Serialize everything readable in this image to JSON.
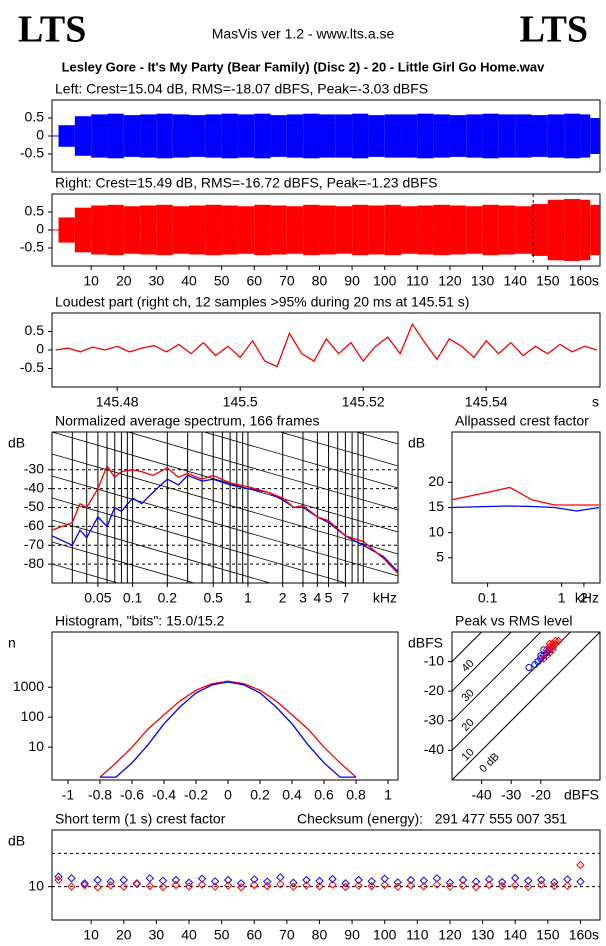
{
  "header": {
    "logo_left": "LTS",
    "title": "MasVis ver 1.2 - www.lts.a.se",
    "logo_right": "LTS",
    "filename": "Lesley Gore - It's My Party (Bear Family) (Disc 2) - 20 - Little Girl Go Home.wav"
  },
  "chart_data": [
    {
      "type": "waveform",
      "title": "Left: Crest=15.04 dB, RMS=-18.07 dBFS, Peak=-3.03 dBFS",
      "x": [
        0,
        5,
        10,
        15,
        20,
        25,
        30,
        35,
        40,
        45,
        50,
        55,
        60,
        65,
        70,
        75,
        80,
        85,
        90,
        95,
        100,
        105,
        110,
        115,
        120,
        125,
        130,
        135,
        140,
        145,
        150,
        155,
        160,
        163
      ],
      "values": [
        0.3,
        0.55,
        0.6,
        0.62,
        0.58,
        0.6,
        0.62,
        0.6,
        0.58,
        0.6,
        0.62,
        0.6,
        0.62,
        0.58,
        0.6,
        0.62,
        0.6,
        0.6,
        0.62,
        0.58,
        0.6,
        0.6,
        0.62,
        0.6,
        0.58,
        0.6,
        0.62,
        0.6,
        0.6,
        0.58,
        0.6,
        0.62,
        0.6,
        0.5
      ],
      "color": "#0000ff",
      "xlim": [
        -2,
        166
      ],
      "ylim": [
        -1,
        1
      ],
      "yticks": [
        0.5,
        0,
        -0.5
      ]
    },
    {
      "type": "waveform",
      "title": "Right: Crest=15.49 dB, RMS=-16.72 dBFS, Peak=-1.23 dBFS",
      "x": [
        0,
        5,
        10,
        15,
        20,
        25,
        30,
        35,
        40,
        45,
        50,
        55,
        60,
        65,
        70,
        75,
        80,
        85,
        90,
        95,
        100,
        105,
        110,
        115,
        120,
        125,
        130,
        135,
        140,
        145,
        150,
        155,
        160,
        163
      ],
      "values": [
        0.35,
        0.62,
        0.68,
        0.7,
        0.66,
        0.68,
        0.7,
        0.66,
        0.68,
        0.7,
        0.68,
        0.66,
        0.7,
        0.68,
        0.66,
        0.7,
        0.68,
        0.66,
        0.7,
        0.68,
        0.7,
        0.66,
        0.68,
        0.7,
        0.68,
        0.66,
        0.7,
        0.68,
        0.66,
        0.72,
        0.84,
        0.86,
        0.84,
        0.7
      ],
      "color": "#ff0000",
      "cursor": 145.51,
      "xlim": [
        -2,
        166
      ],
      "ylim": [
        -1,
        1
      ],
      "yticks": [
        0.5,
        0,
        -0.5
      ],
      "xticks": [
        10,
        20,
        30,
        40,
        50,
        60,
        70,
        80,
        90,
        100,
        110,
        120,
        130,
        140,
        150,
        160
      ],
      "xlabel": "s"
    },
    {
      "type": "line",
      "title": "Loudest part (right ch, 12 samples >95% during 20 ms at 145.51 s)",
      "x": [
        145.47,
        145.472,
        145.474,
        145.476,
        145.478,
        145.48,
        145.482,
        145.484,
        145.486,
        145.488,
        145.49,
        145.492,
        145.494,
        145.496,
        145.498,
        145.5,
        145.502,
        145.504,
        145.506,
        145.508,
        145.51,
        145.512,
        145.514,
        145.516,
        145.518,
        145.52,
        145.522,
        145.524,
        145.526,
        145.528,
        145.53,
        145.532,
        145.534,
        145.536,
        145.538,
        145.54,
        145.542,
        145.544,
        145.546,
        145.548,
        145.55,
        145.552,
        145.554,
        145.556,
        145.558
      ],
      "series": [
        {
          "color": "#ff0000",
          "values": [
            0,
            0.05,
            -0.05,
            0.08,
            0,
            0.1,
            -0.05,
            0.05,
            0.12,
            -0.05,
            0.15,
            -0.1,
            0.2,
            -0.15,
            0.1,
            -0.2,
            0.25,
            -0.3,
            -0.45,
            0.45,
            -0.1,
            -0.3,
            0.3,
            -0.1,
            0.2,
            -0.3,
            0.1,
            0.35,
            -0.1,
            0.7,
            0.2,
            -0.25,
            0.3,
            0.1,
            -0.2,
            0.25,
            -0.1,
            0.2,
            -0.15,
            0.1,
            -0.1,
            0.15,
            -0.05,
            0.1,
            0
          ]
        }
      ],
      "xlim": [
        145.4694,
        145.5585
      ],
      "ylim": [
        -1,
        1
      ],
      "yticks": [
        0.5,
        0,
        -0.5
      ],
      "xticks": [
        145.48,
        145.5,
        145.52,
        145.54
      ],
      "xlabel": "s"
    },
    {
      "type": "line",
      "title": "Normalized average spectrum, 166 frames",
      "ylabel": "dB",
      "xlabel": "kHz",
      "x": [
        0.02,
        0.03,
        0.035,
        0.04,
        0.05,
        0.06,
        0.07,
        0.08,
        0.1,
        0.12,
        0.15,
        0.2,
        0.25,
        0.3,
        0.4,
        0.5,
        0.7,
        1,
        1.5,
        2,
        2.5,
        3,
        4,
        5,
        7,
        10,
        15,
        20
      ],
      "series": [
        {
          "color": "#0000ff",
          "values": [
            -65,
            -70,
            -62,
            -66,
            -55,
            -60,
            -50,
            -52,
            -45,
            -48,
            -42,
            -35,
            -38,
            -33,
            -36,
            -35,
            -38,
            -40,
            -42,
            -46,
            -50,
            -50,
            -55,
            -58,
            -65,
            -70,
            -76,
            -84
          ]
        },
        {
          "color": "#ff0000",
          "values": [
            -62,
            -58,
            -48,
            -50,
            -40,
            -28,
            -34,
            -31,
            -30,
            -31,
            -33,
            -29,
            -34,
            -32,
            -35,
            -33,
            -37,
            -39,
            -42,
            -45,
            -50,
            -49,
            -55,
            -57,
            -65,
            -68,
            -77,
            -85
          ]
        }
      ],
      "xscale": "log",
      "xlim": [
        0.02,
        20
      ],
      "ylim": [
        -90,
        -10
      ],
      "yticks": [
        -30,
        -40,
        -50,
        -60,
        -70,
        -80
      ],
      "xticks": [
        0.05,
        0.1,
        0.2,
        0.5,
        1,
        2,
        3,
        4,
        5,
        7
      ],
      "minor_xgrid": [
        0.03,
        0.04,
        0.06,
        0.07,
        0.08,
        0.09,
        0.3,
        0.4,
        0.6,
        0.7,
        0.8,
        0.9,
        6,
        8,
        9,
        10
      ],
      "grid": true,
      "slope_guides": true
    },
    {
      "type": "line",
      "title": "Allpassed crest factor",
      "ylabel": "dB",
      "xlabel": "kHz",
      "x": [
        0.032,
        0.1,
        0.2,
        0.4,
        0.8,
        1.6,
        3.2
      ],
      "series": [
        {
          "color": "#ff0000",
          "values": [
            16.5,
            18,
            19,
            16.5,
            15.5,
            15.5,
            15.5
          ]
        },
        {
          "color": "#0000ff",
          "values": [
            15,
            15.2,
            15.3,
            15.2,
            15,
            14.3,
            15
          ]
        }
      ],
      "xscale": "log",
      "xlim": [
        0.033,
        3.3
      ],
      "ylim": [
        0,
        30
      ],
      "yticks": [
        20,
        15,
        10,
        5
      ],
      "xticks": [
        0.1,
        1,
        2
      ]
    },
    {
      "type": "line",
      "title": "Histogram, \"bits\": 15.0/15.2",
      "ylabel": "n",
      "x": [
        -0.8,
        -0.7,
        -0.6,
        -0.5,
        -0.4,
        -0.3,
        -0.2,
        -0.1,
        0,
        0.1,
        0.2,
        0.3,
        0.4,
        0.5,
        0.6,
        0.7,
        0.8
      ],
      "series": [
        {
          "color": "#ff0000",
          "values": [
            1,
            3,
            10,
            40,
            120,
            350,
            800,
            1300,
            1600,
            1300,
            800,
            350,
            120,
            40,
            10,
            3,
            1
          ]
        },
        {
          "color": "#0000ff",
          "values": [
            1,
            1,
            3,
            12,
            60,
            220,
            650,
            1200,
            1500,
            1200,
            650,
            220,
            60,
            12,
            3,
            1,
            1
          ]
        }
      ],
      "yscale": "log",
      "xlim": [
        -1.1,
        1.0625
      ],
      "ylim": [
        0.8,
        70000
      ],
      "yticks": [
        1000,
        100,
        10
      ],
      "xticks": [
        -1,
        -0.8,
        -0.6,
        -0.4,
        -0.2,
        0,
        0.2,
        0.4,
        0.6,
        0.8,
        1
      ]
    },
    {
      "type": "scatter",
      "title": "Peak vs RMS level",
      "ylabel": "dBFS",
      "xlabel": "dBFS",
      "series": [
        {
          "color": "#0000ff",
          "marker": "circle",
          "x": [
            -22,
            -20,
            -19,
            -21,
            -18,
            -24,
            -17,
            -20,
            -19,
            -16
          ],
          "values": [
            -11,
            -9,
            -8,
            -10,
            -7,
            -12,
            -6,
            -8,
            -6,
            -5
          ]
        },
        {
          "color": "#ff0000",
          "marker": "diamond",
          "x": [
            -18,
            -17,
            -16,
            -15,
            -17,
            -16,
            -15,
            -14,
            -18,
            -16,
            -17,
            -19
          ],
          "values": [
            -6,
            -5,
            -4,
            -4,
            -7,
            -6,
            -3,
            -3,
            -8,
            -5,
            -4,
            -9
          ]
        }
      ],
      "xlim": [
        -50,
        0
      ],
      "ylim": [
        -50,
        0
      ],
      "yticks": [
        -10,
        -20,
        -30,
        -40
      ],
      "xticks": [
        -40,
        -30,
        -20
      ],
      "crest_lines": [
        {
          "value": 40,
          "label": "40"
        },
        {
          "value": 30,
          "label": "30"
        },
        {
          "value": 20,
          "label": "20"
        },
        {
          "value": 10,
          "label": "10"
        },
        {
          "value": 0,
          "label": "0 dB"
        }
      ]
    },
    {
      "type": "scatter",
      "title": "Short term (1 s) crest factor",
      "ylabel": "dB",
      "xlabel": "s",
      "annotation": "Checksum (energy):   291 477 555 007 351",
      "series": [
        {
          "color": "#0000ff",
          "marker": "diamond",
          "x": [
            0,
            4,
            8,
            12,
            16,
            20,
            24,
            28,
            32,
            36,
            40,
            44,
            48,
            52,
            56,
            60,
            64,
            68,
            72,
            76,
            80,
            84,
            88,
            92,
            96,
            100,
            104,
            108,
            112,
            116,
            120,
            124,
            128,
            132,
            136,
            140,
            144,
            148,
            152,
            156,
            160
          ],
          "values": [
            13,
            12.5,
            11,
            12,
            11.5,
            12,
            11,
            12.5,
            11.8,
            12,
            11.2,
            12.4,
            11.6,
            12,
            11,
            12.2,
            11.5,
            12.8,
            11.2,
            12,
            11.7,
            12.3,
            11,
            12,
            11.6,
            12.4,
            11.3,
            12,
            11.8,
            12.5,
            11.2,
            12,
            11.5,
            12.2,
            11.4,
            12.6,
            11.8,
            12,
            11.3,
            12.2,
            11.5
          ]
        },
        {
          "color": "#ff0000",
          "marker": "diamond",
          "x": [
            0,
            4,
            8,
            12,
            16,
            20,
            24,
            28,
            32,
            36,
            40,
            44,
            48,
            52,
            56,
            60,
            64,
            68,
            72,
            76,
            80,
            84,
            88,
            92,
            96,
            100,
            104,
            108,
            112,
            116,
            120,
            124,
            128,
            132,
            136,
            140,
            144,
            148,
            152,
            156,
            160
          ],
          "values": [
            12,
            10,
            10.5,
            9.8,
            10.4,
            10,
            10.8,
            10.2,
            9.9,
            10.5,
            10.1,
            10.6,
            10,
            10.3,
            9.8,
            10.5,
            10.2,
            10.7,
            10,
            10.4,
            10.1,
            10.6,
            9.9,
            10.3,
            10.2,
            10.5,
            10,
            10.4,
            10.1,
            10.6,
            10,
            10.3,
            9.9,
            10.5,
            10.2,
            10.4,
            10,
            10.6,
            10.2,
            10.3,
            16.5
          ]
        }
      ],
      "xlim": [
        -2,
        166
      ],
      "ylim": [
        0,
        27
      ],
      "yticks": [
        10
      ],
      "reference_lines": [
        10,
        20
      ],
      "xticks": [
        10,
        20,
        30,
        40,
        50,
        60,
        70,
        80,
        90,
        100,
        110,
        120,
        130,
        140,
        150,
        160
      ]
    }
  ]
}
